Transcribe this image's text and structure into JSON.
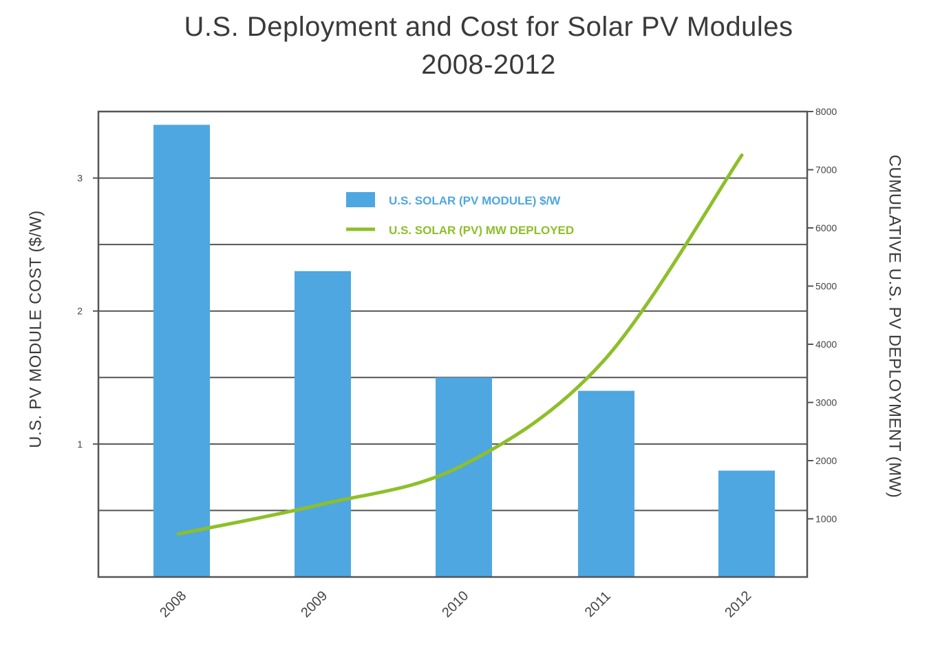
{
  "chart_data": {
    "type": "bar+line",
    "title_lines": [
      "U.S. Deployment and Cost for Solar PV Modules",
      "2008-2012"
    ],
    "categories": [
      "2008",
      "2009",
      "2010",
      "2011",
      "2012"
    ],
    "series": [
      {
        "name": "U.S. SOLAR (PV MODULE) $/W",
        "type": "bar",
        "axis": "left",
        "color": "#4ea7e0",
        "values": [
          3.4,
          2.3,
          1.5,
          1.4,
          0.8
        ]
      },
      {
        "name": "U.S. SOLAR (PV) MW DEPLOYED",
        "type": "line",
        "axis": "right",
        "color": "#8dbf2a",
        "values": [
          740,
          1240,
          1900,
          3700,
          7250
        ]
      }
    ],
    "y_left": {
      "label": "U.S. PV MODULE COST ($/W)",
      "range": [
        0,
        3.5
      ],
      "ticks": [
        1,
        2,
        3
      ]
    },
    "y_right": {
      "label": "CUMULATIVE U.S. PV DEPLOYMENT (MW)",
      "range": [
        0,
        8000
      ],
      "ticks": [
        1000,
        2000,
        3000,
        4000,
        5000,
        6000,
        7000,
        8000
      ]
    },
    "grid": true,
    "legend_position": "top-center"
  }
}
